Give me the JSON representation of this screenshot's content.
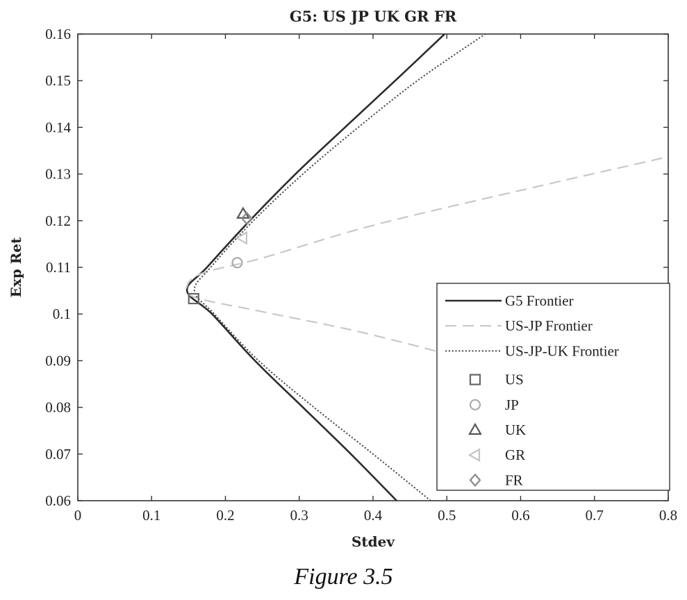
{
  "caption": "Figure 3.5",
  "chart_data": {
    "type": "line",
    "title": "G5: US JP UK GR FR",
    "xlabel": "Stdev",
    "ylabel": "Exp Ret",
    "xlim": [
      0,
      0.8
    ],
    "ylim": [
      0.06,
      0.16
    ],
    "xticks": [
      0,
      0.1,
      0.2,
      0.3,
      0.4,
      0.5,
      0.6,
      0.7,
      0.8
    ],
    "xtick_labels": [
      "0",
      "0.1",
      "0.2",
      "0.3",
      "0.4",
      "0.5",
      "0.6",
      "0.7",
      "0.8"
    ],
    "yticks": [
      0.06,
      0.07,
      0.08,
      0.09,
      0.1,
      0.11,
      0.12,
      0.13,
      0.14,
      0.15,
      0.16
    ],
    "ytick_labels": [
      "0.06",
      "0.07",
      "0.08",
      "0.09",
      "0.1",
      "0.11",
      "0.12",
      "0.13",
      "0.14",
      "0.15",
      "0.16"
    ],
    "grid": false,
    "legend_position": "bottom-right",
    "series": [
      {
        "name": "G5 Frontier",
        "style": "solid",
        "color": "#2b2b2b",
        "points": [
          [
            0.432,
            0.06
          ],
          [
            0.37,
            0.07
          ],
          [
            0.305,
            0.08
          ],
          [
            0.24,
            0.09
          ],
          [
            0.182,
            0.1
          ],
          [
            0.148,
            0.105
          ],
          [
            0.175,
            0.11
          ],
          [
            0.233,
            0.12
          ],
          [
            0.295,
            0.13
          ],
          [
            0.362,
            0.14
          ],
          [
            0.43,
            0.15
          ],
          [
            0.497,
            0.16
          ]
        ]
      },
      {
        "name": "US-JP Frontier",
        "style": "dashed",
        "color": "#c8c8c8",
        "points": [
          [
            0.8,
            0.077
          ],
          [
            0.6,
            0.087
          ],
          [
            0.4,
            0.0955
          ],
          [
            0.25,
            0.1005
          ],
          [
            0.16,
            0.1035
          ],
          [
            0.148,
            0.106
          ],
          [
            0.17,
            0.1088
          ],
          [
            0.25,
            0.112
          ],
          [
            0.4,
            0.119
          ],
          [
            0.6,
            0.1265
          ],
          [
            0.8,
            0.1337
          ]
        ]
      },
      {
        "name": "US-JP-UK Frontier",
        "style": "dotted",
        "color": "#4a4a4a",
        "points": [
          [
            0.478,
            0.06
          ],
          [
            0.4,
            0.07
          ],
          [
            0.32,
            0.08
          ],
          [
            0.245,
            0.09
          ],
          [
            0.185,
            0.1
          ],
          [
            0.158,
            0.105
          ],
          [
            0.18,
            0.11
          ],
          [
            0.238,
            0.12
          ],
          [
            0.305,
            0.13
          ],
          [
            0.38,
            0.14
          ],
          [
            0.46,
            0.15
          ],
          [
            0.552,
            0.16
          ]
        ]
      }
    ],
    "markers": [
      {
        "name": "US",
        "shape": "square",
        "x": 0.157,
        "y": 0.1033,
        "color": "#666666"
      },
      {
        "name": "JP",
        "shape": "circle",
        "x": 0.216,
        "y": 0.111,
        "color": "#aaaaaa"
      },
      {
        "name": "UK",
        "shape": "triangle-up",
        "x": 0.224,
        "y": 0.1215,
        "color": "#555555"
      },
      {
        "name": "GR",
        "shape": "triangle-left",
        "x": 0.223,
        "y": 0.1163,
        "color": "#c4c4c4"
      },
      {
        "name": "FR",
        "shape": "diamond",
        "x": 0.229,
        "y": 0.1205,
        "color": "#888888"
      }
    ]
  }
}
